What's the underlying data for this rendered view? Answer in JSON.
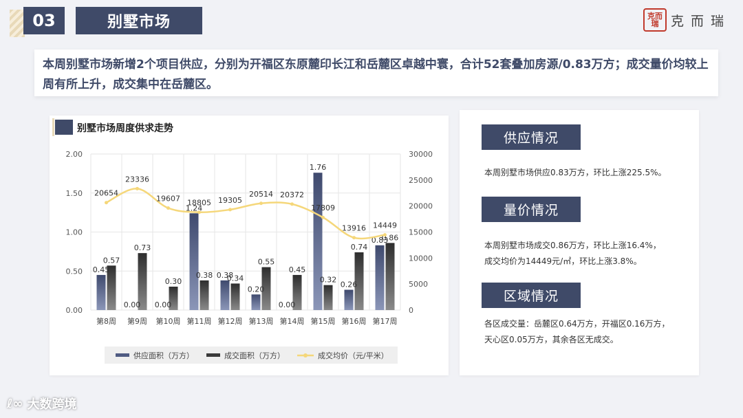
{
  "header": {
    "section_number": "03",
    "section_title": "别墅市场"
  },
  "logo": {
    "seal_text": "克而瑞",
    "brand": "克而瑞"
  },
  "summary": {
    "text": "本周别墅市场新增2个项目供应，分别为开福区东原麓印长江和岳麓区卓越中寰，合计52套叠加房源/0.83万方；成交量价均较上周有所上升，成交集中在岳麓区。"
  },
  "chart_title": "别墅市场周度供求走势",
  "chart_data": {
    "type": "bar",
    "title": "别墅市场周度供求走势",
    "categories": [
      "第8周",
      "第9周",
      "第10周",
      "第11周",
      "第12周",
      "第13周",
      "第14周",
      "第15周",
      "第16周",
      "第17周"
    ],
    "series": [
      {
        "name": "供应面积（万方）",
        "type": "bar",
        "axis": "left",
        "color": "#4f5b82",
        "values": [
          0.45,
          0.0,
          0.0,
          1.24,
          0.38,
          0.2,
          0.0,
          1.76,
          0.26,
          0.83
        ],
        "labels": [
          "0.45",
          "0.00",
          "0.00",
          "1.24",
          "0.38",
          "0.20",
          "0.00",
          "1.76",
          "0.26",
          "0.83"
        ]
      },
      {
        "name": "成交面积（万方）",
        "type": "bar",
        "axis": "left",
        "color": "#3a3a3a",
        "values": [
          0.57,
          0.73,
          0.3,
          0.38,
          0.34,
          0.55,
          0.45,
          0.32,
          0.74,
          0.86
        ],
        "labels": [
          "0.57",
          "0.73",
          "0.30",
          "0.38",
          "0.34",
          "0.55",
          "0.45",
          "0.32",
          "0.74",
          "0.86"
        ]
      },
      {
        "name": "成交均价（元/平米）",
        "type": "line",
        "axis": "right",
        "color": "#f5d77a",
        "values": [
          20654,
          23336,
          19607,
          18805,
          19305,
          20514,
          20372,
          17809,
          13916,
          14449
        ],
        "labels": [
          "20654",
          "23336",
          "19607",
          "18805",
          "19305",
          "20514",
          "20372",
          "17809",
          "13916",
          "14449"
        ]
      }
    ],
    "y_left": {
      "min": 0,
      "max": 2.0,
      "ticks": [
        "0.00",
        "0.50",
        "1.00",
        "1.50",
        "2.00"
      ]
    },
    "y_right": {
      "min": 0,
      "max": 30000,
      "ticks": [
        "0",
        "5000",
        "10000",
        "15000",
        "20000",
        "25000",
        "30000"
      ]
    },
    "legend_position": "bottom"
  },
  "supply": {
    "title": "供应情况",
    "lines": [
      "本周别墅市场供应0.83万方，环比上涨225.5%。"
    ]
  },
  "price": {
    "title": "量价情况",
    "lines": [
      "本周别墅市场成交0.86万方，环比上涨16.4%，",
      "成交均价为14449元/㎡，环比上涨3.8%。"
    ]
  },
  "region": {
    "title": "区域情况",
    "lines": [
      "各区成交量：岳麓区0.64万方，开福区0.16万方，",
      "天心区0.05万方，其余各区无成交。"
    ]
  },
  "watermark": {
    "text": "大数跨境"
  },
  "colors": {
    "accent": "#3f4a68",
    "supply_bar": "#4f5b82",
    "deal_bar": "#3a3a3a",
    "price_line": "#f5d77a"
  }
}
